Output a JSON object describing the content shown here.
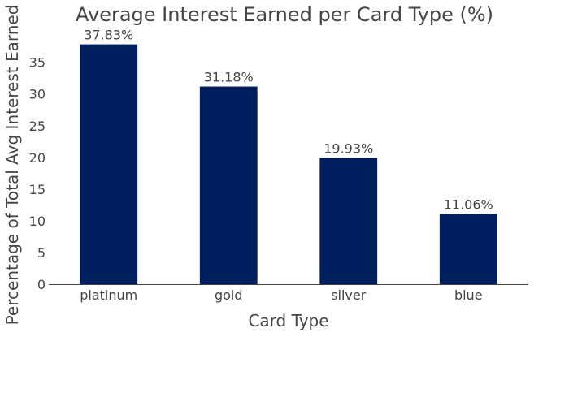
{
  "chart_data": {
    "type": "bar",
    "title": "Average Interest Earned per Card Type (%)",
    "xlabel": "Card Type",
    "ylabel": "Percentage of Total Avg Interest Earned",
    "categories": [
      "platinum",
      "gold",
      "silver",
      "blue"
    ],
    "values": [
      37.83,
      31.18,
      19.93,
      11.06
    ],
    "data_labels": [
      "37.83%",
      "31.18%",
      "19.93%",
      "11.06%"
    ],
    "yticks": [
      0,
      5,
      10,
      15,
      20,
      25,
      30,
      35
    ],
    "ylim": [
      0,
      39.7
    ],
    "bar_color": "#001f5f",
    "grid": false,
    "legend": "none"
  }
}
